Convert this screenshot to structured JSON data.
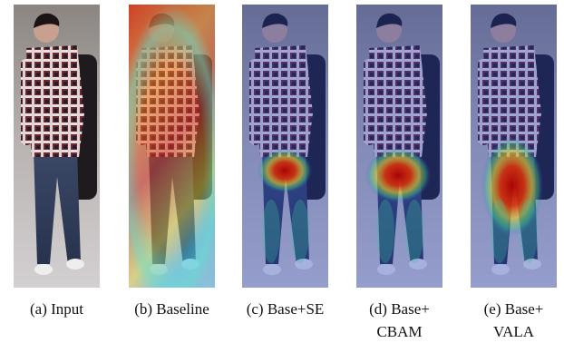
{
  "figure": {
    "panels": [
      {
        "caption_lines": [
          "(a) Input"
        ]
      },
      {
        "caption_lines": [
          "(b) Baseline"
        ]
      },
      {
        "caption_lines": [
          "(c) Base+SE"
        ]
      },
      {
        "caption_lines": [
          "(d) Base+",
          "CBAM"
        ]
      },
      {
        "caption_lines": [
          "(e) Base+",
          "VALA"
        ]
      }
    ]
  }
}
